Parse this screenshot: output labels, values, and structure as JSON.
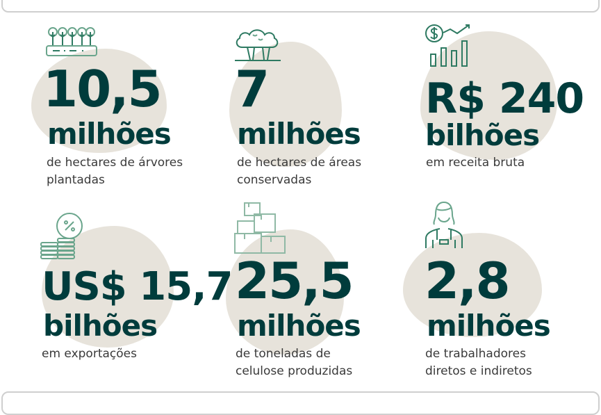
{
  "colors": {
    "heading": "#003c3c",
    "caption": "#3a3a3a",
    "icon": "#2e7a62",
    "blob": "#e7e3db"
  },
  "stats": [
    {
      "icon": "tree-nursery-icon",
      "number": "10,5",
      "unit": "milhões",
      "caption_line1": "de hectares de árvores",
      "caption_line2": "plantadas"
    },
    {
      "icon": "forest-icon",
      "number": "7",
      "unit": "milhões",
      "caption_line1": "de hectares de áreas",
      "caption_line2": "conservadas"
    },
    {
      "icon": "revenue-growth-icon",
      "number": "R$ 240",
      "unit": "bilhões",
      "caption_line1": "em receita bruta",
      "caption_line2": ""
    },
    {
      "icon": "coins-percent-icon",
      "number": "US$ 15,7",
      "unit": "bilhões",
      "caption_line1": "em exportações",
      "caption_line2": ""
    },
    {
      "icon": "boxes-icon",
      "number": "25,5",
      "unit": "milhões",
      "caption_line1": "de toneladas de",
      "caption_line2": "celulose produzidas"
    },
    {
      "icon": "worker-icon",
      "number": "2,8",
      "unit": "milhões",
      "caption_line1": "de trabalhadores",
      "caption_line2": "diretos e indiretos"
    }
  ]
}
